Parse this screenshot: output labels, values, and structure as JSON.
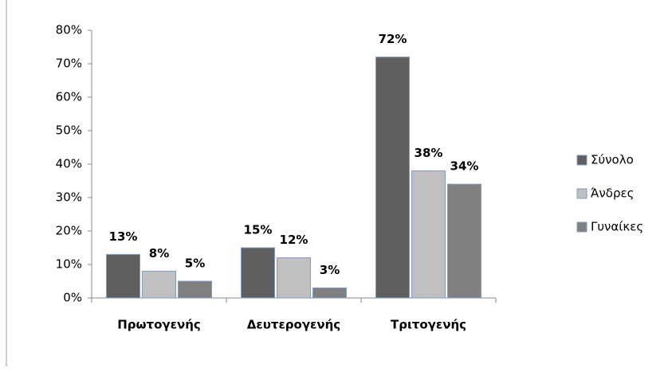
{
  "chart_data": {
    "type": "bar",
    "categories": [
      "Πρωτογενής",
      "Δευτερογενής",
      "Τριτογενής"
    ],
    "series": [
      {
        "name": "Σύνολο",
        "color": "#5f5f5f",
        "values": [
          13,
          15,
          72
        ],
        "value_labels": [
          "13%",
          "15%",
          "72%"
        ]
      },
      {
        "name": "Άνδρες",
        "color": "#c0c0c0",
        "values": [
          8,
          12,
          38
        ],
        "value_labels": [
          "8%",
          "12%",
          "38%"
        ]
      },
      {
        "name": "Γυναίκες",
        "color": "#808080",
        "values": [
          5,
          3,
          34
        ],
        "value_labels": [
          "5%",
          "3%",
          "34%"
        ]
      }
    ],
    "ylim": [
      0,
      80
    ],
    "yticks": [
      {
        "value": 0,
        "label": "0%"
      },
      {
        "value": 10,
        "label": "10%"
      },
      {
        "value": 20,
        "label": "20%"
      },
      {
        "value": 30,
        "label": "30%"
      },
      {
        "value": 40,
        "label": "40%"
      },
      {
        "value": 50,
        "label": "50%"
      },
      {
        "value": 60,
        "label": "60%"
      },
      {
        "value": 70,
        "label": "70%"
      },
      {
        "value": 80,
        "label": "80%"
      }
    ],
    "grid": false,
    "legend": "right"
  }
}
